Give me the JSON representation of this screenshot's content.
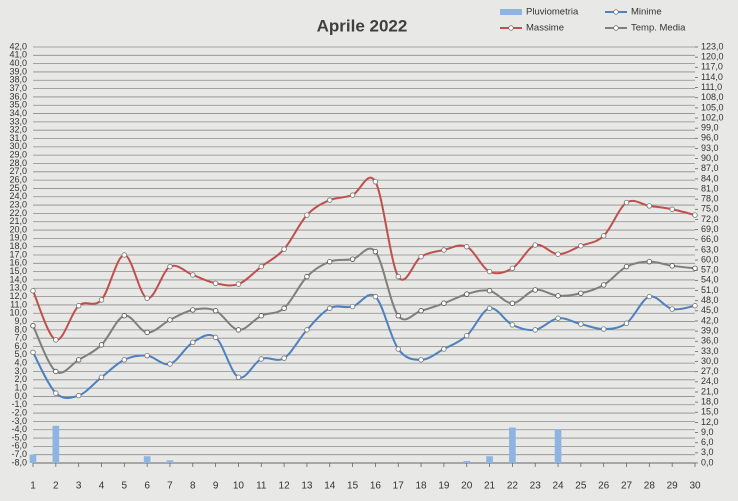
{
  "chart_data": {
    "type": "line",
    "title": "Aprile 2022",
    "x": [
      1,
      2,
      3,
      4,
      5,
      6,
      7,
      8,
      9,
      10,
      11,
      12,
      13,
      14,
      15,
      16,
      17,
      18,
      19,
      20,
      21,
      22,
      23,
      24,
      25,
      26,
      27,
      28,
      29,
      30
    ],
    "xlim": [
      1,
      30
    ],
    "xticks": [
      1,
      2,
      3,
      4,
      5,
      6,
      7,
      8,
      9,
      10,
      11,
      12,
      13,
      14,
      15,
      16,
      17,
      18,
      19,
      20,
      21,
      22,
      23,
      24,
      25,
      26,
      27,
      28,
      29,
      30
    ],
    "ylim": [
      -8,
      42
    ],
    "yticks": [
      {
        "value": -8,
        "label": "-8,0"
      },
      {
        "value": -7,
        "label": "-7,0"
      },
      {
        "value": -6,
        "label": "-6,0"
      },
      {
        "value": -5,
        "label": "-5,0"
      },
      {
        "value": -4,
        "label": "-4,0"
      },
      {
        "value": -3,
        "label": "-3,0"
      },
      {
        "value": -2,
        "label": "-2,0"
      },
      {
        "value": -1,
        "label": "-1,0"
      },
      {
        "value": 0,
        "label": "0,0"
      },
      {
        "value": 1,
        "label": "1,0"
      },
      {
        "value": 2,
        "label": "2,0"
      },
      {
        "value": 3,
        "label": "3,0"
      },
      {
        "value": 4,
        "label": "4,0"
      },
      {
        "value": 5,
        "label": "5,0"
      },
      {
        "value": 6,
        "label": "6,0"
      },
      {
        "value": 7,
        "label": "7,0"
      },
      {
        "value": 8,
        "label": "8,0"
      },
      {
        "value": 9,
        "label": "9,0"
      },
      {
        "value": 10,
        "label": "10,0"
      },
      {
        "value": 11,
        "label": "11,0"
      },
      {
        "value": 12,
        "label": "12,0"
      },
      {
        "value": 13,
        "label": "13,0"
      },
      {
        "value": 14,
        "label": "14,0"
      },
      {
        "value": 15,
        "label": "15,0"
      },
      {
        "value": 16,
        "label": "16,0"
      },
      {
        "value": 17,
        "label": "17,0"
      },
      {
        "value": 18,
        "label": "18,0"
      },
      {
        "value": 19,
        "label": "19,0"
      },
      {
        "value": 20,
        "label": "20,0"
      },
      {
        "value": 21,
        "label": "21,0"
      },
      {
        "value": 22,
        "label": "22,0"
      },
      {
        "value": 23,
        "label": "23,0"
      },
      {
        "value": 24,
        "label": "24,0"
      },
      {
        "value": 25,
        "label": "25,0"
      },
      {
        "value": 26,
        "label": "26,0"
      },
      {
        "value": 27,
        "label": "27,0"
      },
      {
        "value": 28,
        "label": "28,0"
      },
      {
        "value": 29,
        "label": "29,0"
      },
      {
        "value": 30,
        "label": "30,0"
      },
      {
        "value": 31,
        "label": "31,0"
      },
      {
        "value": 32,
        "label": "32,0"
      },
      {
        "value": 33,
        "label": "33,0"
      },
      {
        "value": 34,
        "label": "34,0"
      },
      {
        "value": 35,
        "label": "35,0"
      },
      {
        "value": 36,
        "label": "36,0"
      },
      {
        "value": 37,
        "label": "37,0"
      },
      {
        "value": 38,
        "label": "38,0"
      },
      {
        "value": 39,
        "label": "39,0"
      },
      {
        "value": 40,
        "label": "40,0"
      },
      {
        "value": 41,
        "label": "41,0"
      },
      {
        "value": 42,
        "label": "42,0"
      }
    ],
    "y2lim": [
      0,
      123
    ],
    "y2ticks": [
      {
        "value": 0,
        "label": "0,0"
      },
      {
        "value": 3,
        "label": "3,0"
      },
      {
        "value": 6,
        "label": "6,0"
      },
      {
        "value": 9,
        "label": "9,0"
      },
      {
        "value": 12,
        "label": "12,0"
      },
      {
        "value": 15,
        "label": "15,0"
      },
      {
        "value": 18,
        "label": "18,0"
      },
      {
        "value": 21,
        "label": "21,0"
      },
      {
        "value": 24,
        "label": "24,0"
      },
      {
        "value": 27,
        "label": "27,0"
      },
      {
        "value": 30,
        "label": "30,0"
      },
      {
        "value": 33,
        "label": "33,0"
      },
      {
        "value": 36,
        "label": "36,0"
      },
      {
        "value": 39,
        "label": "39,0"
      },
      {
        "value": 42,
        "label": "42,0"
      },
      {
        "value": 45,
        "label": "45,0"
      },
      {
        "value": 48,
        "label": "48,0"
      },
      {
        "value": 51,
        "label": "51,0"
      },
      {
        "value": 54,
        "label": "54,0"
      },
      {
        "value": 57,
        "label": "57,0"
      },
      {
        "value": 60,
        "label": "60,0"
      },
      {
        "value": 63,
        "label": "63,0"
      },
      {
        "value": 66,
        "label": "66,0"
      },
      {
        "value": 69,
        "label": "69,0"
      },
      {
        "value": 72,
        "label": "72,0"
      },
      {
        "value": 75,
        "label": "75,0"
      },
      {
        "value": 78,
        "label": "78,0"
      },
      {
        "value": 81,
        "label": "81,0"
      },
      {
        "value": 84,
        "label": "84,0"
      },
      {
        "value": 87,
        "label": "87,0"
      },
      {
        "value": 90,
        "label": "90,0"
      },
      {
        "value": 93,
        "label": "93,0"
      },
      {
        "value": 96,
        "label": "96,0"
      },
      {
        "value": 99,
        "label": "99,0"
      },
      {
        "value": 102,
        "label": "102,0"
      },
      {
        "value": 105,
        "label": "105,0"
      },
      {
        "value": 108,
        "label": "108,0"
      },
      {
        "value": 111,
        "label": "111,0"
      },
      {
        "value": 114,
        "label": "114,0"
      },
      {
        "value": 117,
        "label": "117,0"
      },
      {
        "value": 120,
        "label": "120,0"
      },
      {
        "value": 123,
        "label": "123,0"
      }
    ],
    "grid": true,
    "legend": "top-right",
    "series": [
      {
        "name": "Pluviometria",
        "type": "bar",
        "axis": "y2",
        "color": "#8db4e2",
        "values": [
          2.5,
          11,
          0,
          0,
          0,
          2,
          0.8,
          0,
          0,
          0,
          0,
          0,
          0,
          0,
          0,
          0,
          0,
          0,
          0,
          0.6,
          2,
          10.5,
          0,
          10,
          0,
          0,
          0,
          0,
          0,
          0
        ]
      },
      {
        "name": "Minime",
        "type": "line",
        "color": "#4f81bd",
        "values": [
          5.3,
          0.4,
          0.1,
          2.3,
          4.4,
          4.9,
          3.9,
          6.5,
          7.1,
          2.3,
          4.5,
          4.6,
          8.0,
          10.6,
          10.8,
          12.0,
          5.7,
          4.4,
          5.7,
          7.3,
          10.6,
          8.6,
          8.0,
          9.4,
          8.7,
          8.1,
          8.8,
          12.0,
          10.5,
          10.9
        ]
      },
      {
        "name": "Massime",
        "type": "line",
        "color": "#c0504d",
        "values": [
          12.7,
          6.8,
          10.9,
          11.6,
          17.0,
          11.8,
          15.6,
          14.6,
          13.6,
          13.5,
          15.6,
          17.7,
          21.8,
          23.6,
          24.2,
          25.8,
          14.4,
          16.8,
          17.6,
          18.0,
          15.0,
          15.4,
          18.2,
          17.1,
          18.1,
          19.3,
          23.3,
          22.9,
          22.5,
          21.8
        ]
      },
      {
        "name": "Temp. Media",
        "type": "line",
        "color": "#7f7f7f",
        "values": [
          8.5,
          3.0,
          4.4,
          6.2,
          9.7,
          7.7,
          9.2,
          10.4,
          10.3,
          8.0,
          9.7,
          10.6,
          14.4,
          16.2,
          16.5,
          17.4,
          9.7,
          10.3,
          11.2,
          12.3,
          12.7,
          11.2,
          12.8,
          12.1,
          12.4,
          13.4,
          15.6,
          16.2,
          15.7,
          15.4
        ]
      }
    ]
  }
}
